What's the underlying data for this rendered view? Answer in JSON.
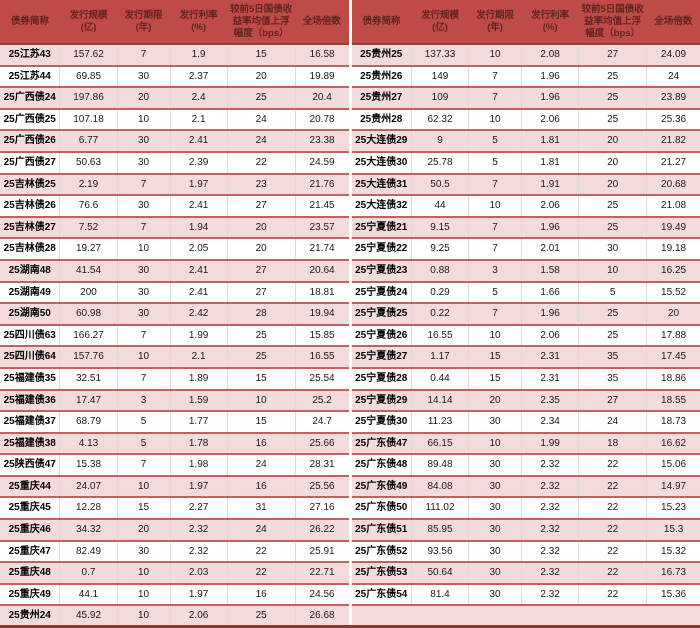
{
  "columns": [
    "债券简称",
    "发行规模\n(亿)",
    "发行期限\n(年)",
    "发行利率\n(%)",
    "较前5日国债收\n益率均值上浮\n幅度（bps）",
    "全场倍数"
  ],
  "accent_colors": {
    "header_bg": "#be4b48",
    "header_text": "#632423",
    "row_pink": "#f2dcdb",
    "row_white": "#ffffff",
    "row_border": "#c4615e",
    "bottom_border": "#953735"
  },
  "chart_data": [
    {
      "type": "table",
      "columns": [
        "债券简称",
        "发行规模(亿)",
        "发行期限(年)",
        "发行利率(%)",
        "较前5日国债收益率均值上浮幅度（bps）",
        "全场倍数"
      ],
      "rows": [
        [
          "25江苏43",
          "157.62",
          "7",
          "1.9",
          "15",
          "16.58"
        ],
        [
          "25江苏44",
          "69.85",
          "30",
          "2.37",
          "20",
          "19.89"
        ],
        [
          "25广西债24",
          "197.86",
          "20",
          "2.4",
          "25",
          "20.4"
        ],
        [
          "25广西债25",
          "107.18",
          "10",
          "2.1",
          "24",
          "20.78"
        ],
        [
          "25广西债26",
          "6.77",
          "30",
          "2.41",
          "24",
          "23.38"
        ],
        [
          "25广西债27",
          "50.63",
          "30",
          "2.39",
          "22",
          "24.59"
        ],
        [
          "25吉林债25",
          "2.19",
          "7",
          "1.97",
          "23",
          "21.76"
        ],
        [
          "25吉林债26",
          "76.6",
          "30",
          "2.41",
          "27",
          "21.45"
        ],
        [
          "25吉林债27",
          "7.52",
          "7",
          "1.94",
          "20",
          "23.57"
        ],
        [
          "25吉林债28",
          "19.27",
          "10",
          "2.05",
          "20",
          "21.74"
        ],
        [
          "25湖南48",
          "41.54",
          "30",
          "2.41",
          "27",
          "20.64"
        ],
        [
          "25湖南49",
          "200",
          "30",
          "2.41",
          "27",
          "18.81"
        ],
        [
          "25湖南50",
          "60.98",
          "30",
          "2.42",
          "28",
          "19.94"
        ],
        [
          "25四川债63",
          "166.27",
          "7",
          "1.99",
          "25",
          "15.85"
        ],
        [
          "25四川债64",
          "157.76",
          "10",
          "2.1",
          "25",
          "16.55"
        ],
        [
          "25福建债35",
          "32.51",
          "7",
          "1.89",
          "15",
          "25.54"
        ],
        [
          "25福建债36",
          "17.47",
          "3",
          "1.59",
          "10",
          "25.2"
        ],
        [
          "25福建债37",
          "68.79",
          "5",
          "1.77",
          "15",
          "24.7"
        ],
        [
          "25福建债38",
          "4.13",
          "5",
          "1.78",
          "16",
          "25.66"
        ],
        [
          "25陕西债47",
          "15.38",
          "7",
          "1.98",
          "24",
          "28.31"
        ],
        [
          "25重庆44",
          "24.07",
          "10",
          "1.97",
          "16",
          "25.56"
        ],
        [
          "25重庆45",
          "12.28",
          "15",
          "2.27",
          "31",
          "27.16"
        ],
        [
          "25重庆46",
          "34.32",
          "20",
          "2.32",
          "24",
          "26.22"
        ],
        [
          "25重庆47",
          "82.49",
          "30",
          "2.32",
          "22",
          "25.91"
        ],
        [
          "25重庆48",
          "0.7",
          "10",
          "2.03",
          "22",
          "22.71"
        ],
        [
          "25重庆49",
          "44.1",
          "10",
          "1.97",
          "16",
          "24.56"
        ],
        [
          "25贵州24",
          "45.92",
          "10",
          "2.06",
          "25",
          "26.68"
        ]
      ]
    },
    {
      "type": "table",
      "columns": [
        "债券简称",
        "发行规模(亿)",
        "发行期限(年)",
        "发行利率(%)",
        "较前5日国债收益率均值上浮幅度（bps）",
        "全场倍数"
      ],
      "rows": [
        [
          "25贵州25",
          "137.33",
          "10",
          "2.08",
          "27",
          "24.09"
        ],
        [
          "25贵州26",
          "149",
          "7",
          "1.96",
          "25",
          "24"
        ],
        [
          "25贵州27",
          "109",
          "7",
          "1.96",
          "25",
          "23.89"
        ],
        [
          "25贵州28",
          "62.32",
          "10",
          "2.06",
          "25",
          "25.36"
        ],
        [
          "25大连债29",
          "9",
          "5",
          "1.81",
          "20",
          "21.82"
        ],
        [
          "25大连债30",
          "25.78",
          "5",
          "1.81",
          "20",
          "21.27"
        ],
        [
          "25大连债31",
          "50.5",
          "7",
          "1.91",
          "20",
          "20.68"
        ],
        [
          "25大连债32",
          "44",
          "10",
          "2.06",
          "25",
          "21.08"
        ],
        [
          "25宁夏债21",
          "9.15",
          "7",
          "1.96",
          "25",
          "19.49"
        ],
        [
          "25宁夏债22",
          "9.25",
          "7",
          "2.01",
          "30",
          "19.18"
        ],
        [
          "25宁夏债23",
          "0.88",
          "3",
          "1.58",
          "10",
          "16.25"
        ],
        [
          "25宁夏债24",
          "0.29",
          "5",
          "1.66",
          "5",
          "15.52"
        ],
        [
          "25宁夏债25",
          "0.22",
          "7",
          "1.96",
          "25",
          "20"
        ],
        [
          "25宁夏债26",
          "16.55",
          "10",
          "2.06",
          "25",
          "17.88"
        ],
        [
          "25宁夏债27",
          "1.17",
          "15",
          "2.31",
          "35",
          "17.45"
        ],
        [
          "25宁夏债28",
          "0.44",
          "15",
          "2.31",
          "35",
          "18.86"
        ],
        [
          "25宁夏债29",
          "14.14",
          "20",
          "2.35",
          "27",
          "18.55"
        ],
        [
          "25宁夏债30",
          "11.23",
          "30",
          "2.34",
          "24",
          "18.73"
        ],
        [
          "25广东债47",
          "66.15",
          "10",
          "1.99",
          "18",
          "16.62"
        ],
        [
          "25广东债48",
          "89.48",
          "30",
          "2.32",
          "22",
          "15.06"
        ],
        [
          "25广东债49",
          "84.08",
          "30",
          "2.32",
          "22",
          "14.97"
        ],
        [
          "25广东债50",
          "111.02",
          "30",
          "2.32",
          "22",
          "15.23"
        ],
        [
          "25广东债51",
          "85.95",
          "30",
          "2.32",
          "22",
          "15.3"
        ],
        [
          "25广东债52",
          "93.56",
          "30",
          "2.32",
          "22",
          "15.32"
        ],
        [
          "25广东债53",
          "50.64",
          "30",
          "2.32",
          "22",
          "16.73"
        ],
        [
          "25广东债54",
          "81.4",
          "30",
          "2.32",
          "22",
          "15.36"
        ]
      ]
    }
  ]
}
